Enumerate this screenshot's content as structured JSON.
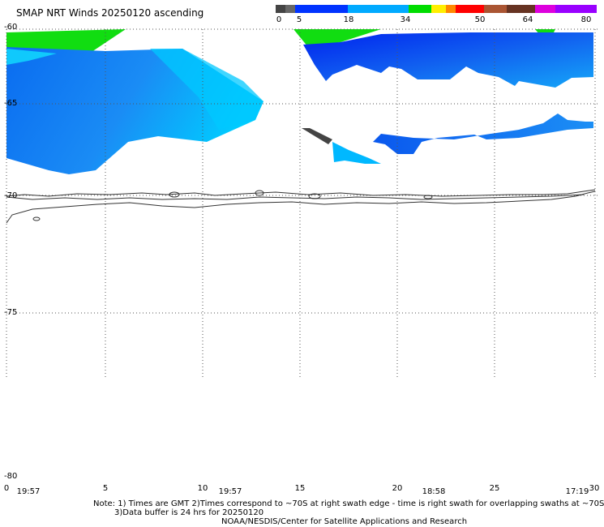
{
  "title": "SMAP NRT Winds 20250120 ascending",
  "colorbar": {
    "labels": [
      "0",
      "5",
      "18",
      "34",
      "50",
      "64",
      "80"
    ],
    "colors": [
      "#444444",
      "#666666",
      "#0033ff",
      "#00aaff",
      "#00dd00",
      "#ffee00",
      "#ff8800",
      "#ff0000",
      "#aa5533",
      "#663322",
      "#dd00dd",
      "#9900ff"
    ]
  },
  "map": {
    "lat_labels": [
      "-60",
      "-65",
      "-70",
      "-75",
      "-80"
    ],
    "lon_labels": [
      "0",
      "5",
      "10",
      "15",
      "20",
      "25",
      "30"
    ],
    "times": [
      "19:57",
      "19:57",
      "18:58",
      "17:19"
    ]
  },
  "notes": {
    "line1": "Note: 1) Times are GMT 2)Times correspond to ~70S at right swath edge - time is right swath for overlapping swaths at ~70S",
    "line2": "3)Data buffer is 24 hrs for 20250120",
    "line3": "NOAA/NESDIS/Center for Satellite Applications and Research"
  }
}
